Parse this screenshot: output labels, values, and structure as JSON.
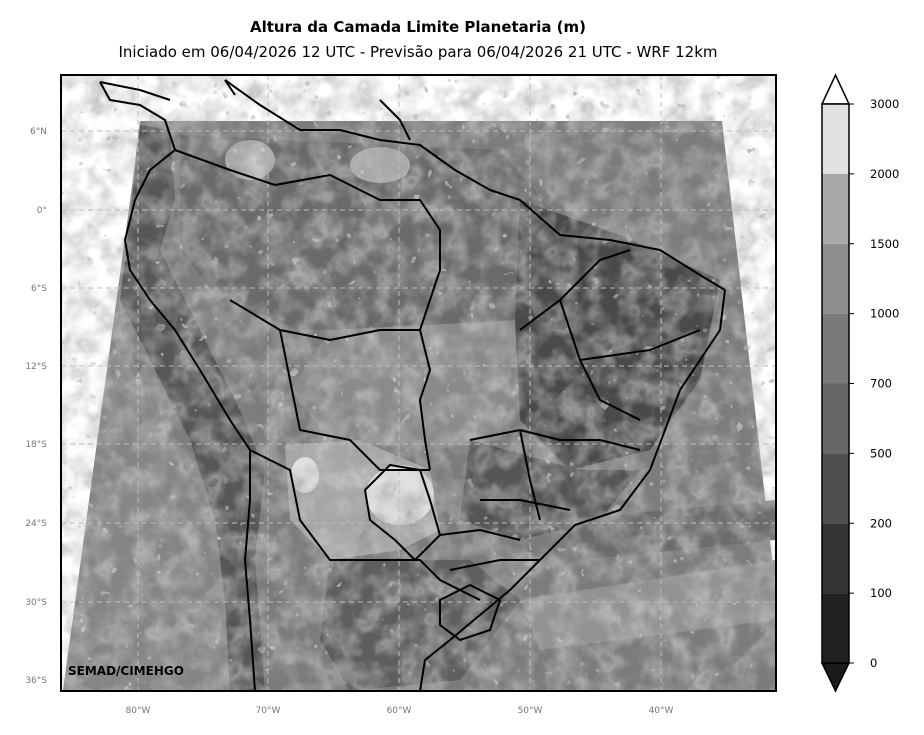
{
  "title": "Altura da Camada Limite Planetaria (m)",
  "subtitle": "Iniciado em 06/04/2026 12 UTC - Previsão para 06/04/2026 21 UTC - WRF 12km",
  "credit": "SEMAD/CIMEHGO",
  "lat_labels": [
    "6°N",
    "0°",
    "6°S",
    "12°S",
    "18°S",
    "24°S",
    "30°S",
    "36°S"
  ],
  "lon_labels": [
    "80°W",
    "70°W",
    "60°W",
    "50°W",
    "40°W"
  ],
  "colorbar": {
    "labels": [
      "0",
      "100",
      "200",
      "500",
      "700",
      "1000",
      "1500",
      "2000",
      "3000"
    ],
    "colors": [
      "#222222",
      "#333333",
      "#4f4f4f",
      "#666666",
      "#7a7a7a",
      "#8e8e8e",
      "#a8a8a8",
      "#e2e2e2"
    ],
    "under_color": "#1a1a1a",
    "over_color": "#ffffff"
  }
}
